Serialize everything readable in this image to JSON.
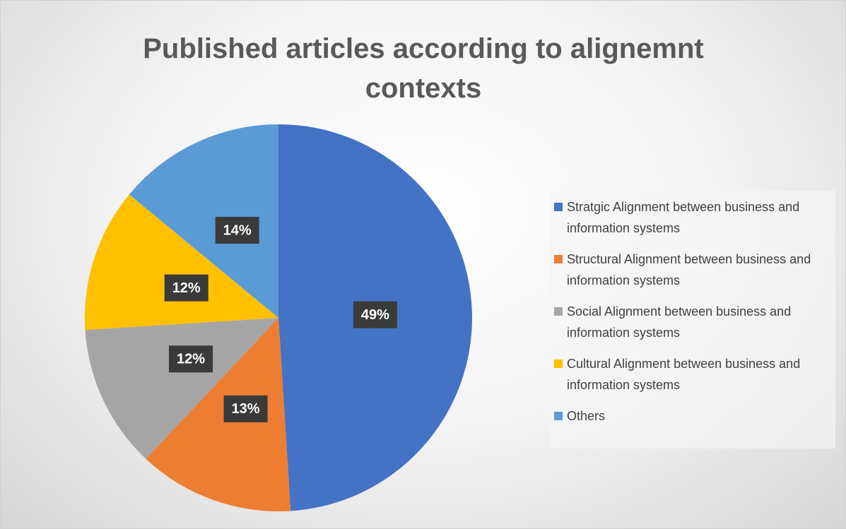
{
  "chart_data": {
    "type": "pie",
    "title": "Published articles according to alignemnt contexts",
    "categories": [
      "Stratgic Alignment between business and information systems",
      "Structural Alignment between business and information systems",
      "Social Alignment between business and information systems",
      "Cultural Alignment between business and information systems",
      "Others"
    ],
    "values": [
      49,
      13,
      12,
      12,
      14
    ],
    "value_labels": [
      "49%",
      "13%",
      "12%",
      "12%",
      "14%"
    ],
    "colors": [
      "#4472c4",
      "#ed7d31",
      "#a5a5a5",
      "#ffc000",
      "#5b9bd5"
    ],
    "legend": "right"
  }
}
